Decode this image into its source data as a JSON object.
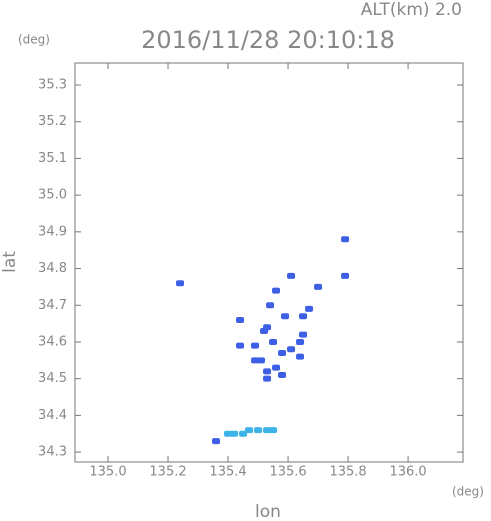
{
  "chart_data": {
    "type": "scatter",
    "title": "2016/11/28 20:10:18",
    "subtitle": "ALT(km)  2.0",
    "y_unit": "(deg)",
    "x_unit": "(deg)",
    "xlabel": "lon",
    "ylabel": "lat",
    "xlim": [
      134.89,
      136.183
    ],
    "ylim": [
      34.273,
      35.36
    ],
    "xticks": [
      {
        "value": 135,
        "label": "135.0"
      },
      135.2,
      135.4,
      135.6,
      135.8,
      {
        "value": 136,
        "label": "136.0"
      }
    ],
    "yticks": [
      34.3,
      34.4,
      34.5,
      34.6,
      34.7,
      34.8,
      34.9,
      {
        "value": 35,
        "label": "35.0"
      },
      35.1,
      35.2,
      35.3
    ],
    "grid": false,
    "series": [
      {
        "color": "#3d5fe6",
        "x": [
          135.24,
          135.79,
          135.79,
          135.61,
          135.56,
          135.54,
          135.44,
          135.53,
          135.59,
          135.65,
          135.65,
          135.64,
          135.61,
          135.58,
          135.55,
          135.49,
          135.44,
          135.51,
          135.56,
          135.58,
          135.53,
          135.53,
          135.49,
          135.52,
          135.64,
          135.67,
          135.7,
          135.36
        ],
        "values": [
          34.76,
          34.88,
          34.78,
          34.78,
          34.74,
          34.7,
          34.66,
          34.64,
          34.67,
          34.67,
          34.62,
          34.6,
          34.58,
          34.57,
          34.6,
          34.59,
          34.59,
          34.55,
          34.53,
          34.51,
          34.5,
          34.52,
          34.55,
          34.63,
          34.56,
          34.69,
          34.75,
          34.33
        ]
      },
      {
        "color": "#3cb4ea",
        "x": [
          135.4,
          135.42,
          135.45,
          135.47,
          135.5,
          135.53,
          135.55
        ],
        "values": [
          34.35,
          34.35,
          34.35,
          34.36,
          34.36,
          34.36,
          34.36
        ]
      }
    ]
  }
}
